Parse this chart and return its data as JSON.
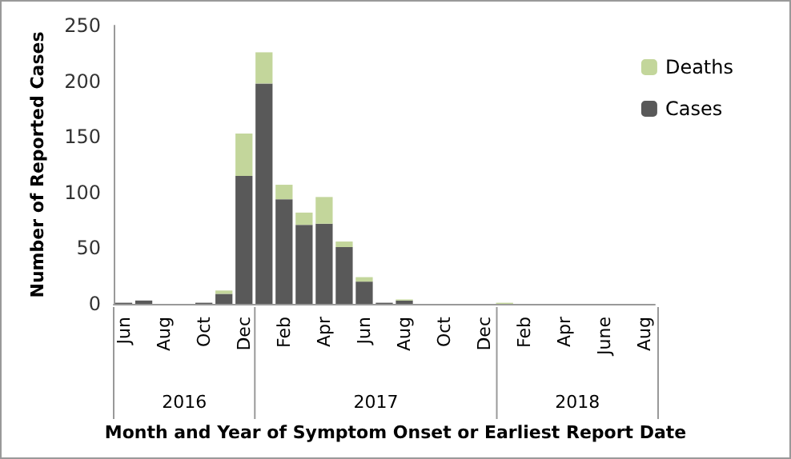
{
  "chart_data": {
    "type": "bar",
    "stacked": true,
    "xlabel": "Month and Year of Symptom Onset or Earliest Report Date",
    "ylabel": "Number of Reported Cases",
    "categories": [
      "Jun",
      null,
      "Aug",
      null,
      "Oct",
      null,
      "Dec",
      null,
      "Feb",
      null,
      "Apr",
      null,
      "Jun",
      null,
      "Aug",
      null,
      "Oct",
      null,
      "Dec",
      null,
      "Feb",
      null,
      "Apr",
      null,
      "June",
      null,
      "Aug"
    ],
    "series": [
      {
        "name": "Cases",
        "color": "#595959",
        "values": [
          1,
          3,
          0,
          0,
          1,
          9,
          115,
          198,
          94,
          71,
          72,
          51,
          20,
          1,
          3,
          0,
          0,
          0,
          0,
          0,
          0,
          0,
          0,
          0,
          0,
          0,
          0
        ]
      },
      {
        "name": "Deaths",
        "color": "#c3d69b",
        "values": [
          0,
          0,
          0,
          0,
          0,
          3,
          38,
          28,
          13,
          11,
          24,
          5,
          4,
          0,
          1,
          0,
          0,
          0,
          0,
          1,
          0,
          0,
          0,
          0,
          0,
          0,
          0
        ]
      }
    ],
    "ylim": [
      0,
      250
    ],
    "yticks": [
      0,
      50,
      100,
      150,
      200,
      250
    ],
    "grid": false,
    "legend": "top right",
    "annotations": [
      "2016",
      "2017",
      "2018"
    ]
  }
}
